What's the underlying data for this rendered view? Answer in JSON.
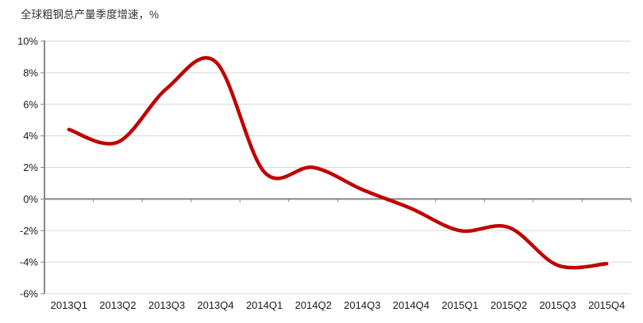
{
  "chart_data": {
    "type": "line",
    "title": "全球粗钢总产量季度增速，%",
    "categories": [
      "2013Q1",
      "2013Q2",
      "2013Q3",
      "2013Q4",
      "2014Q1",
      "2014Q2",
      "2014Q3",
      "2014Q4",
      "2015Q1",
      "2015Q2",
      "2015Q3",
      "2015Q4"
    ],
    "values": [
      4.4,
      3.6,
      7.0,
      8.7,
      1.7,
      2.0,
      0.6,
      -0.6,
      -2.0,
      -1.8,
      -4.2,
      -4.1
    ],
    "xlabel": "",
    "ylabel": "",
    "ylim": [
      -6,
      10
    ],
    "yticks": [
      {
        "value": 10,
        "label": "10%"
      },
      {
        "value": 8,
        "label": "8%"
      },
      {
        "value": 6,
        "label": "6%"
      },
      {
        "value": 4,
        "label": "4%"
      },
      {
        "value": 2,
        "label": "2%"
      },
      {
        "value": 0,
        "label": "0%"
      },
      {
        "value": -2,
        "label": "-2%"
      },
      {
        "value": -4,
        "label": "-4%"
      },
      {
        "value": -6,
        "label": "-6%"
      }
    ],
    "grid": true,
    "legend": "none",
    "smoothed": true,
    "line_color": "#C00000",
    "grid_color": "#D6D6D6",
    "axis_color": "#868686",
    "label_color": "#1A1A1A"
  }
}
